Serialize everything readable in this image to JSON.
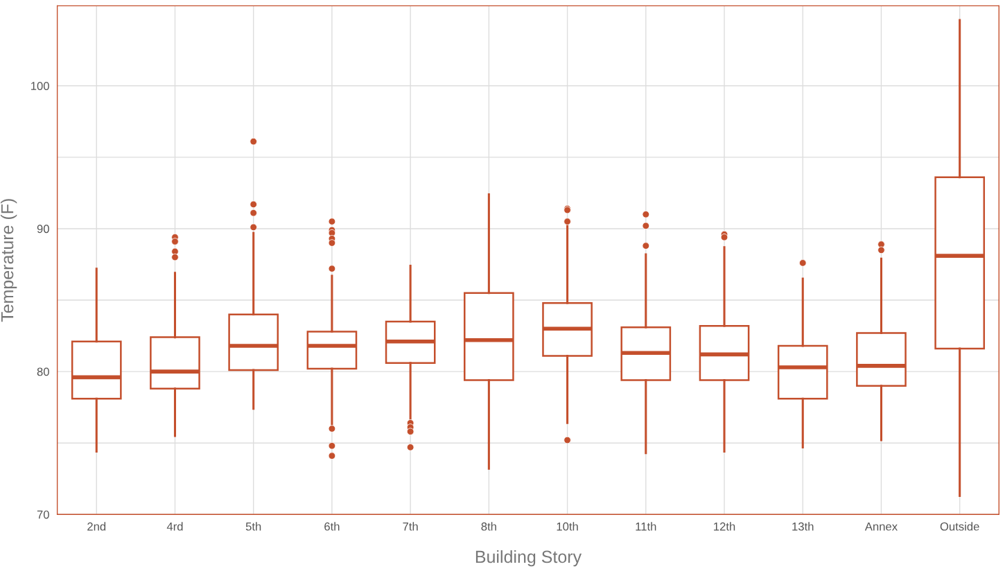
{
  "chart_data": {
    "type": "box",
    "xlabel": "Building Story",
    "ylabel": "Temperature (F)",
    "categories": [
      "2nd",
      "4rd",
      "5th",
      "6th",
      "7th",
      "8th",
      "10th",
      "11th",
      "12th",
      "13th",
      "Annex",
      "Outside"
    ],
    "color": "#c44f2c",
    "grid": true,
    "marker": "circle",
    "ylim": [
      70,
      105.6
    ],
    "yticks": [
      70,
      {
        "value": 75,
        "label": null
      },
      80,
      {
        "value": 85,
        "label": null
      },
      90,
      {
        "value": 95,
        "label": null
      },
      100
    ],
    "boxes": [
      {
        "low": 74.4,
        "q1": 78.1,
        "median": 79.6,
        "q3": 82.1,
        "high": 87.2
      },
      {
        "low": 75.5,
        "q1": 78.8,
        "median": 80.0,
        "q3": 82.4,
        "high": 86.9,
        "outliers": [
          89.4,
          89.1,
          88.4,
          88.0
        ]
      },
      {
        "low": 77.4,
        "q1": 80.1,
        "median": 81.8,
        "q3": 84.0,
        "high": 89.7,
        "outliers": [
          96.1,
          91.7,
          91.1,
          90.1
        ]
      },
      {
        "low": 76.3,
        "q1": 80.2,
        "median": 81.8,
        "q3": 82.8,
        "high": 86.7,
        "outliers": [
          90.5,
          89.9,
          89.7,
          89.3,
          89.0,
          87.2,
          76.0,
          74.8,
          74.1
        ]
      },
      {
        "low": 76.7,
        "q1": 80.6,
        "median": 82.1,
        "q3": 83.5,
        "high": 87.4,
        "outliers": [
          76.4,
          76.1,
          75.8,
          74.7
        ]
      },
      {
        "low": 73.2,
        "q1": 79.4,
        "median": 82.2,
        "q3": 85.5,
        "high": 92.4
      },
      {
        "low": 76.4,
        "q1": 81.1,
        "median": 83.0,
        "q3": 84.8,
        "high": 90.3,
        "outliers": [
          91.4,
          91.3,
          90.5,
          75.2
        ]
      },
      {
        "low": 74.3,
        "q1": 79.4,
        "median": 81.3,
        "q3": 83.1,
        "high": 88.2,
        "outliers": [
          91.0,
          90.2,
          88.8
        ]
      },
      {
        "low": 74.4,
        "q1": 79.4,
        "median": 81.2,
        "q3": 83.2,
        "high": 88.7,
        "outliers": [
          89.6,
          89.4
        ]
      },
      {
        "low": 74.7,
        "q1": 78.1,
        "median": 80.3,
        "q3": 81.8,
        "high": 86.5,
        "outliers": [
          87.6
        ]
      },
      {
        "low": 75.2,
        "q1": 79.0,
        "median": 80.4,
        "q3": 82.7,
        "high": 87.9,
        "outliers": [
          88.9,
          88.5
        ]
      },
      {
        "low": 71.3,
        "q1": 81.6,
        "median": 88.1,
        "q3": 93.6,
        "high": 104.6
      }
    ]
  }
}
